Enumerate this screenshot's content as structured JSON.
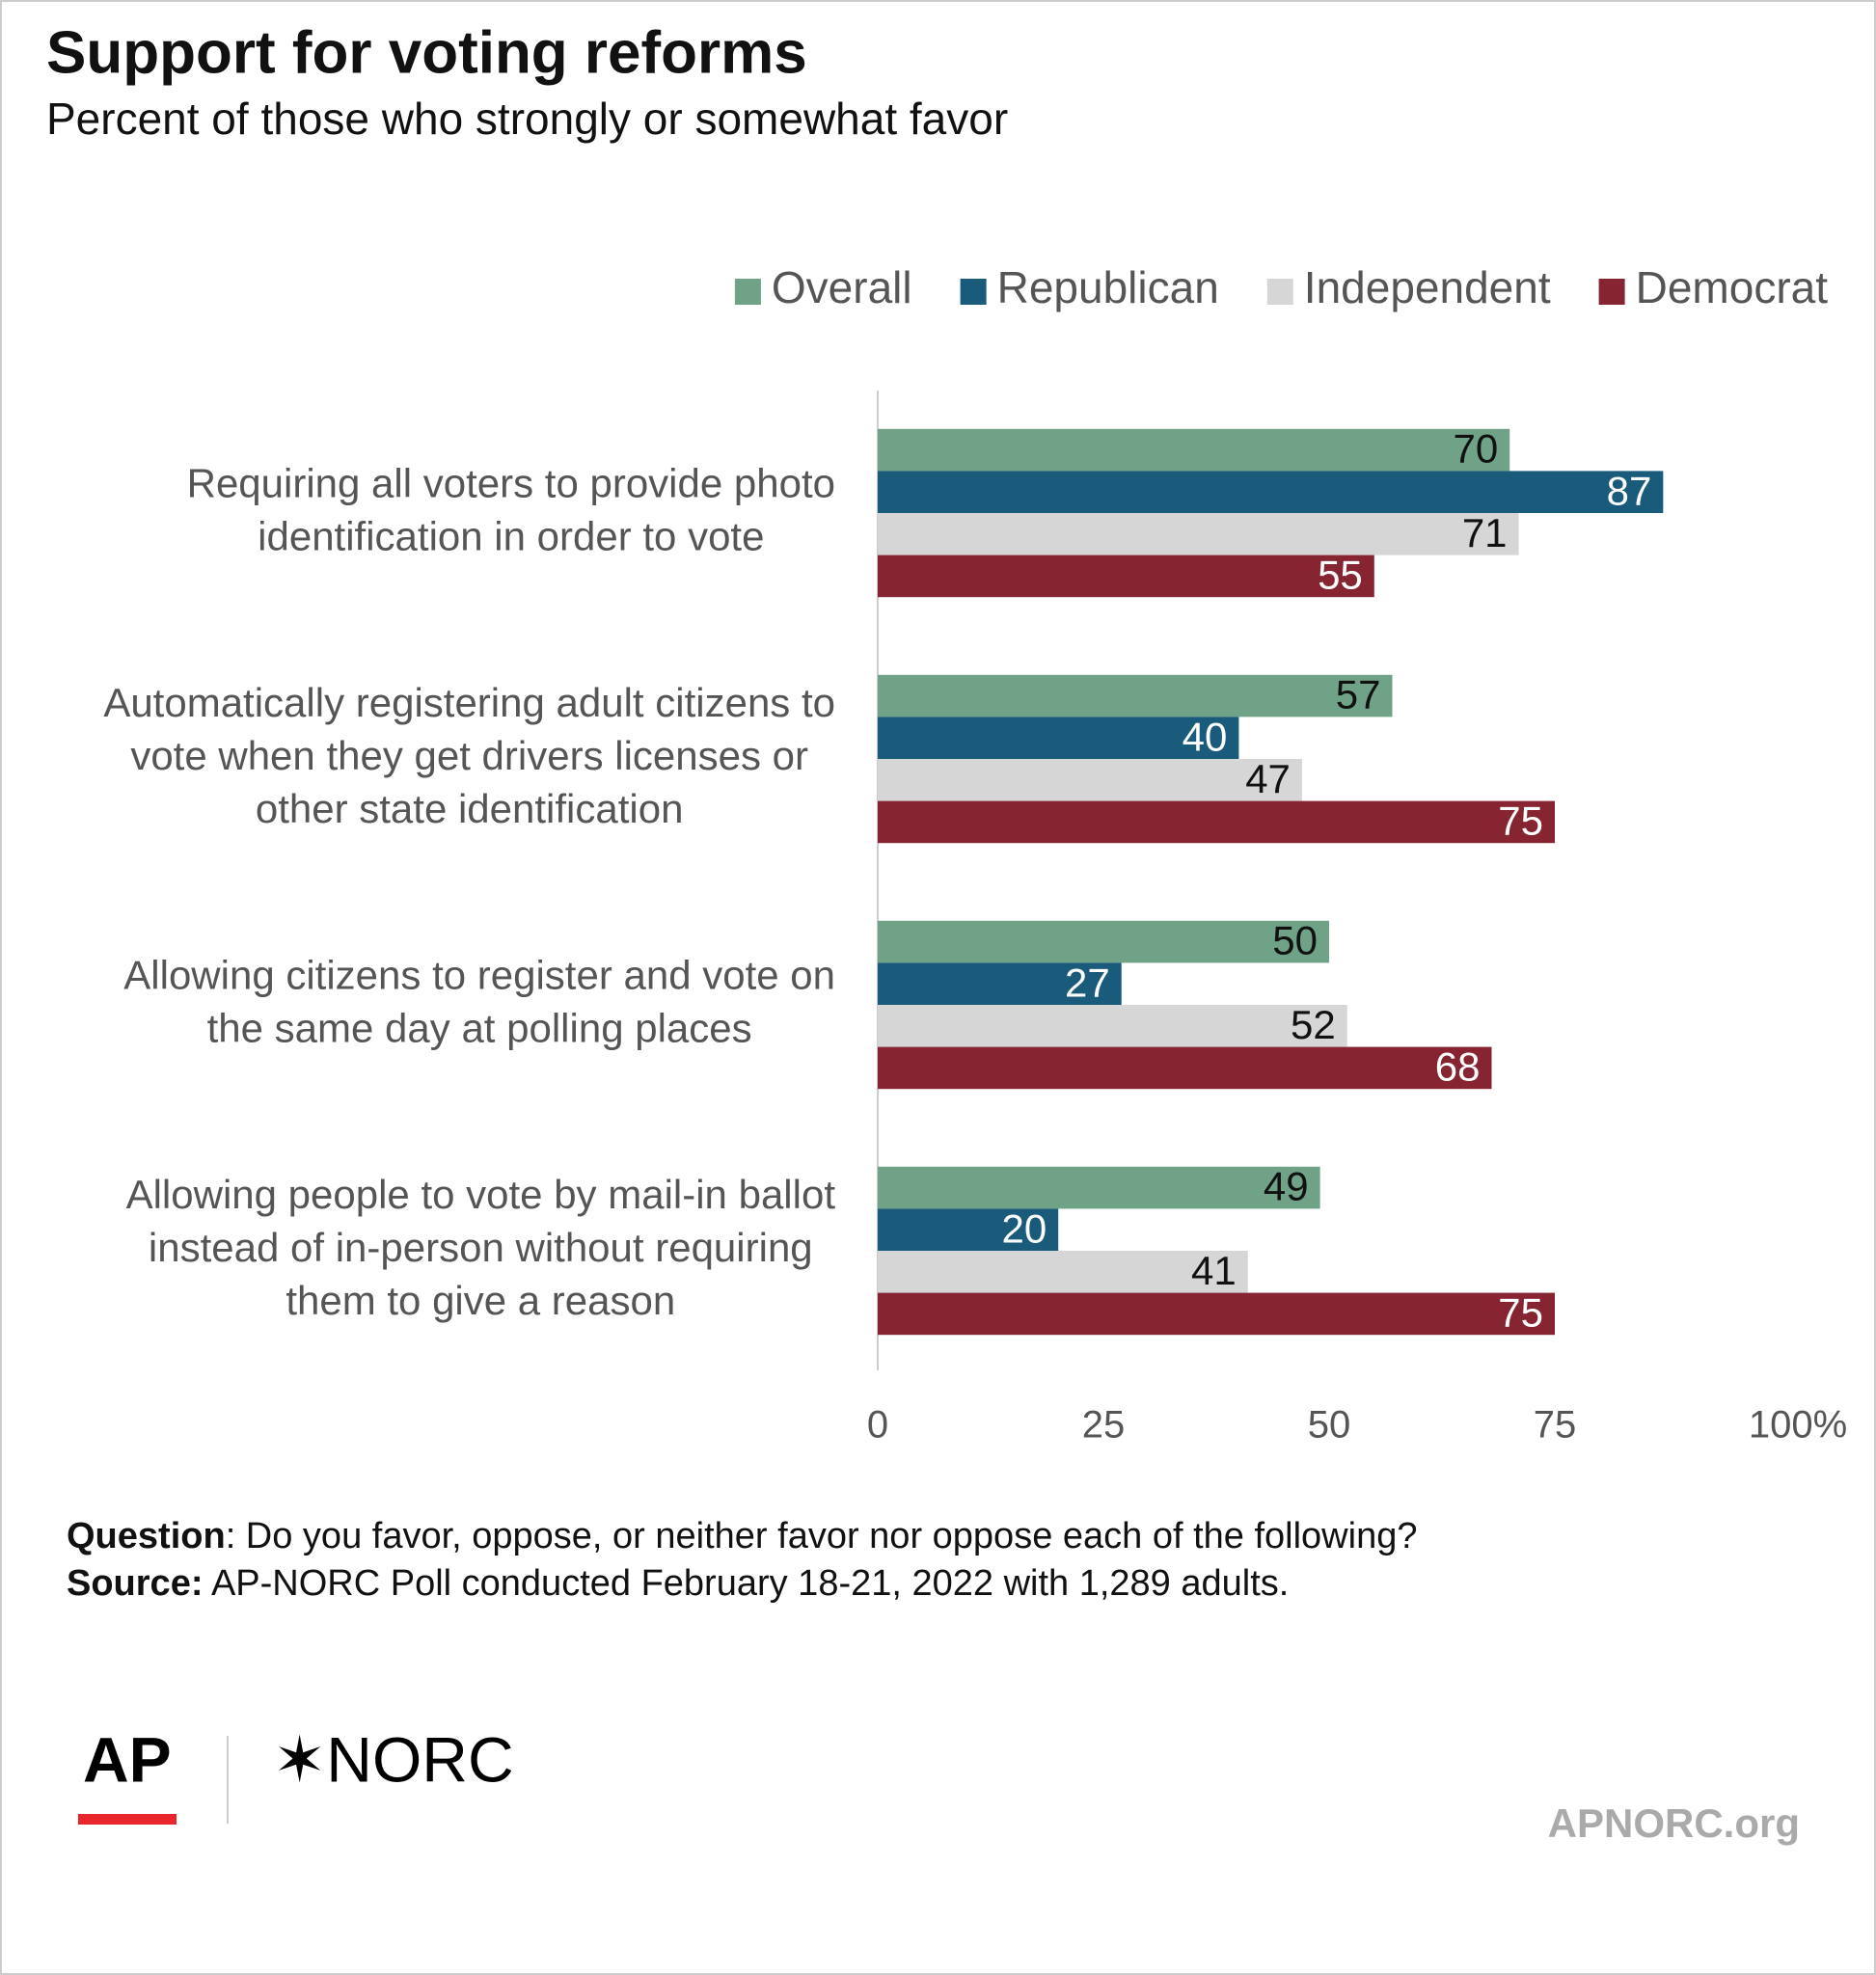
{
  "chart_data": {
    "type": "hbar",
    "title": "Support for voting reforms",
    "subtitle": "Percent of those who strongly or somewhat favor",
    "categories": [
      [
        "Requiring all voters to provide photo",
        "identification in order to vote"
      ],
      [
        "Automatically registering adult citizens to",
        "vote when they get drivers licenses or",
        "other state identification"
      ],
      [
        "Allowing citizens to register and vote on",
        "the same day at polling places"
      ],
      [
        "Allowing people to vote by mail-in ballot",
        "instead of in-person without requiring",
        "them to give a reason"
      ]
    ],
    "series": [
      {
        "name": "Overall",
        "color": "#6fa287",
        "values": [
          70,
          57,
          50,
          49
        ]
      },
      {
        "name": "Republican",
        "color": "#1a5a7a",
        "values": [
          87,
          40,
          27,
          20
        ]
      },
      {
        "name": "Independent",
        "color": "#d6d6d6",
        "values": [
          71,
          47,
          52,
          41
        ]
      },
      {
        "name": "Democrat",
        "color": "#862432",
        "values": [
          55,
          75,
          68,
          75
        ]
      }
    ],
    "xlim": [
      0,
      100
    ],
    "xticks": [
      0,
      25,
      50,
      75,
      {
        "value": 100,
        "label": "100%"
      }
    ],
    "legend": "top-right"
  },
  "footer": {
    "question_label": "Question",
    "question_text": ": Do you favor, oppose, or neither favor nor oppose each of the following?",
    "source_label": "Source:",
    "source_text": " AP-NORC Poll conducted February 18-21, 2022 with 1,289 adults.",
    "logo_ap": "AP",
    "logo_norc": "✶NORC",
    "website": "APNORC.org"
  }
}
